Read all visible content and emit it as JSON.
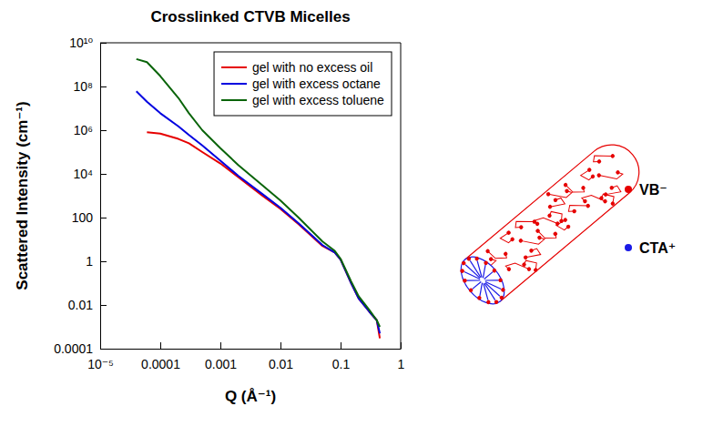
{
  "chart_data": {
    "type": "line",
    "title": "Crosslinked CTVB Micelles",
    "x_label": "Q  (Å⁻¹)",
    "y_label": "Scattered Intensity  (cm⁻¹)",
    "log": true,
    "grid": false,
    "legend": "top-right",
    "xlim": [
      1e-05,
      1
    ],
    "ylim": [
      0.0001,
      10000000000
    ],
    "xticks": [
      {
        "value": 1e-05,
        "label": "10⁻⁵"
      },
      0.0001,
      0.001,
      0.01,
      0.1,
      1
    ],
    "yticks": [
      0.0001,
      0.01,
      1,
      100,
      {
        "value": 10000,
        "label": "10⁴"
      },
      {
        "value": 1000000,
        "label": "10⁶"
      },
      {
        "value": 100000000,
        "label": "10⁸"
      },
      {
        "value": 10000000000,
        "label": "10¹⁰"
      }
    ],
    "x": [
      4e-05,
      6e-05,
      0.0001,
      0.0002,
      0.0003,
      0.0005,
      0.001,
      0.002,
      0.005,
      0.01,
      0.02,
      0.05,
      0.08,
      0.1,
      0.15,
      0.2,
      0.3,
      0.4,
      0.45
    ],
    "series": [
      {
        "name": "gel with no excess oil",
        "color": "#e60000",
        "values": [
          null,
          800000,
          700000,
          400000,
          250000,
          100000,
          30000,
          7000,
          1000,
          250,
          50,
          5,
          2.5,
          1.2,
          0.1,
          0.02,
          0.005,
          0.002,
          0.0003
        ]
      },
      {
        "name": "gel with excess octane",
        "color": "#0000e0",
        "values": [
          60000000,
          20000000,
          6000000,
          1500000,
          600000,
          200000,
          40000,
          8000,
          1200,
          280,
          55,
          5.5,
          2.5,
          1.2,
          0.1,
          0.02,
          0.005,
          0.002,
          0.0005
        ]
      },
      {
        "name": "gel with excess toluene",
        "color": "#0a640a",
        "values": [
          1800000000,
          1300000000,
          300000000,
          30000000,
          6000000,
          1000000,
          150000,
          25000,
          3000,
          600,
          100,
          8,
          3,
          1.3,
          0.12,
          0.025,
          0.006,
          0.002,
          0.001
        ]
      }
    ],
    "annotations": [
      {
        "text": "VB⁻",
        "color": "#e60000"
      },
      {
        "text": "CTA⁺",
        "color": "#1a1ae6"
      }
    ]
  }
}
